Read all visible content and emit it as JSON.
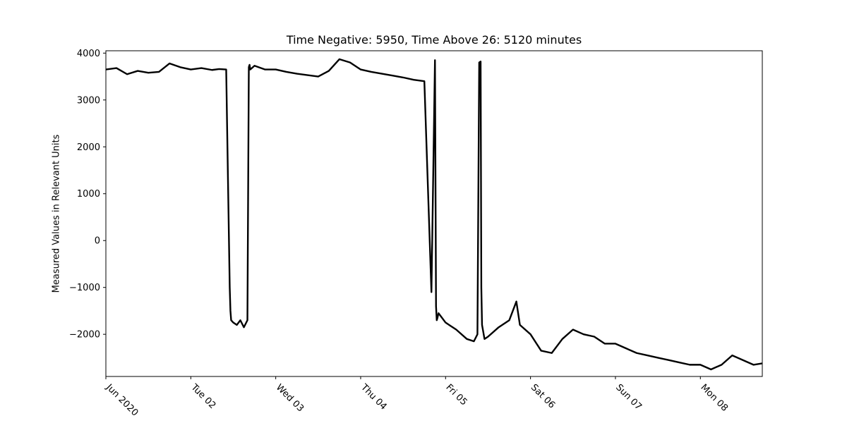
{
  "chart_data": {
    "type": "line",
    "title": "Time Negative: 5950, Time Above 26: 5120 minutes",
    "xlabel": "",
    "ylabel": "Measured Values in Relevant Units",
    "x_tick_labels": [
      "Jun 2020",
      "Tue 02",
      "Wed 03",
      "Thu 04",
      "Fri 05",
      "Sat 06",
      "Sun 07",
      "Mon 08"
    ],
    "x_ticks": [
      "2020-06-01",
      "2020-06-02",
      "2020-06-03",
      "2020-06-04",
      "2020-06-05",
      "2020-06-06",
      "2020-06-07",
      "2020-06-08"
    ],
    "xlim": [
      "2020-06-01 00:00",
      "2020-06-08 17:30"
    ],
    "y_ticks": [
      -2000,
      -1000,
      0,
      1000,
      2000,
      3000,
      4000
    ],
    "ylim": [
      -2900,
      4050
    ],
    "grid": false,
    "line_color": "#000000",
    "series": [
      {
        "x": [
          "2020-06-01 00:00",
          "2020-06-01 03:00",
          "2020-06-01 06:00",
          "2020-06-01 09:00",
          "2020-06-01 12:00",
          "2020-06-01 15:00",
          "2020-06-01 18:00",
          "2020-06-01 21:00",
          "2020-06-02 00:00",
          "2020-06-02 03:00",
          "2020-06-02 06:00",
          "2020-06-02 08:00",
          "2020-06-02 10:00",
          "2020-06-02 11:00",
          "2020-06-02 11:12",
          "2020-06-02 11:24",
          "2020-06-02 12:00",
          "2020-06-02 13:00",
          "2020-06-02 14:00",
          "2020-06-02 15:00",
          "2020-06-02 16:00",
          "2020-06-02 16:24",
          "2020-06-02 16:36",
          "2020-06-02 16:48",
          "2020-06-02 18:00",
          "2020-06-02 21:00",
          "2020-06-03 00:00",
          "2020-06-03 03:00",
          "2020-06-03 06:00",
          "2020-06-03 09:00",
          "2020-06-03 12:00",
          "2020-06-03 15:00",
          "2020-06-03 18:00",
          "2020-06-03 21:00",
          "2020-06-04 00:00",
          "2020-06-04 03:00",
          "2020-06-04 06:00",
          "2020-06-04 09:00",
          "2020-06-04 12:00",
          "2020-06-04 15:00",
          "2020-06-04 18:00",
          "2020-06-04 20:00",
          "2020-06-04 21:00",
          "2020-06-04 21:18",
          "2020-06-04 21:30",
          "2020-06-04 21:42",
          "2020-06-04 22:00",
          "2020-06-05 00:00",
          "2020-06-05 03:00",
          "2020-06-05 06:00",
          "2020-06-05 08:00",
          "2020-06-05 09:00",
          "2020-06-05 09:30",
          "2020-06-05 09:54",
          "2020-06-05 10:06",
          "2020-06-05 10:18",
          "2020-06-05 11:00",
          "2020-06-05 12:00",
          "2020-06-05 15:00",
          "2020-06-05 18:00",
          "2020-06-05 20:00",
          "2020-06-05 21:00",
          "2020-06-06 00:00",
          "2020-06-06 03:00",
          "2020-06-06 06:00",
          "2020-06-06 09:00",
          "2020-06-06 12:00",
          "2020-06-06 15:00",
          "2020-06-06 18:00",
          "2020-06-06 21:00",
          "2020-06-07 00:00",
          "2020-06-07 03:00",
          "2020-06-07 06:00",
          "2020-06-07 09:00",
          "2020-06-07 12:00",
          "2020-06-07 15:00",
          "2020-06-07 18:00",
          "2020-06-07 21:00",
          "2020-06-08 00:00",
          "2020-06-08 03:00",
          "2020-06-08 06:00",
          "2020-06-08 09:00",
          "2020-06-08 12:00",
          "2020-06-08 15:00",
          "2020-06-08 17:30"
        ],
        "values": [
          3650,
          3680,
          3550,
          3620,
          3580,
          3600,
          3780,
          3700,
          3650,
          3680,
          3640,
          3660,
          3650,
          -1000,
          -1500,
          -1700,
          -1750,
          -1800,
          -1700,
          -1850,
          -1700,
          3700,
          3750,
          3650,
          3730,
          3650,
          3650,
          3600,
          3560,
          3530,
          3500,
          3620,
          3870,
          3800,
          3650,
          3600,
          3560,
          3520,
          3480,
          3430,
          3400,
          -1100,
          3850,
          -1400,
          -1700,
          -1650,
          -1550,
          -1750,
          -1900,
          -2100,
          -2150,
          -2000,
          3800,
          3820,
          -1000,
          -1800,
          -2100,
          -2050,
          -1850,
          -1700,
          -1300,
          -1800,
          -2000,
          -2350,
          -2400,
          -2100,
          -1900,
          -2000,
          -2050,
          -2200,
          -2200,
          -2300,
          -2400,
          -2450,
          -2500,
          -2550,
          -2600,
          -2650,
          -2650,
          -2750,
          -2650,
          -2450,
          -2550,
          -2650,
          -2620
        ]
      }
    ]
  }
}
